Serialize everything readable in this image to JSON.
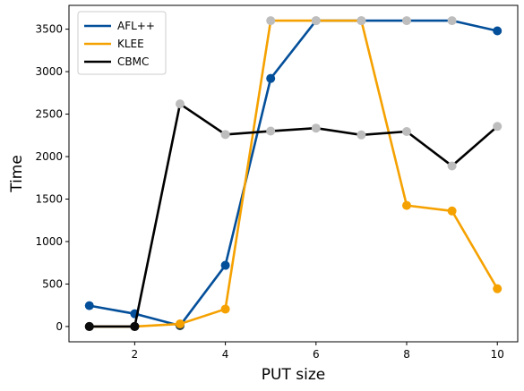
{
  "chart_data": {
    "type": "line",
    "title": "",
    "xlabel": "PUT size",
    "ylabel": "Time",
    "xlim": [
      0.55,
      10.45
    ],
    "ylim": [
      -180,
      3780
    ],
    "x_ticks": [
      2,
      4,
      6,
      8,
      10
    ],
    "y_ticks": [
      0,
      500,
      1000,
      1500,
      2000,
      2500,
      3000,
      3500
    ],
    "grid": false,
    "legend_position": "top-left",
    "x": [
      1,
      2,
      3,
      4,
      5,
      6,
      7,
      8,
      9,
      10
    ],
    "series": [
      {
        "name": "AFL++",
        "color": "#044F9A",
        "values": [
          245,
          150,
          10,
          720,
          2920,
          3600,
          3600,
          3600,
          3600,
          3480
        ],
        "marker_colors": [
          "#044F9A",
          "#044F9A",
          "#1F3A4A",
          "#044F9A",
          "#044F9A",
          "#BDBDBD",
          "#BDBDBD",
          "#BDBDBD",
          "#BDBDBD",
          "#044F9A"
        ]
      },
      {
        "name": "KLEE",
        "color": "#F5A100",
        "values": [
          0,
          0,
          30,
          205,
          3600,
          3600,
          3600,
          1425,
          1360,
          445
        ],
        "marker_colors": [
          "#1A1005",
          "#1A1005",
          "#F5A100",
          "#F5A100",
          "#BDBDBD",
          "#BDBDBD",
          "#BDBDBD",
          "#F5A100",
          "#F5A100",
          "#F5A100"
        ]
      },
      {
        "name": "CBMC",
        "color": "#000000",
        "values": [
          0,
          0,
          2620,
          2260,
          2300,
          2335,
          2255,
          2295,
          1890,
          2355
        ],
        "marker_colors": [
          "#0B0B0B",
          "#0B0B0B",
          "#BDBDBD",
          "#BDBDBD",
          "#BDBDBD",
          "#BDBDBD",
          "#BDBDBD",
          "#BDBDBD",
          "#BDBDBD",
          "#BDBDBD"
        ]
      }
    ]
  }
}
